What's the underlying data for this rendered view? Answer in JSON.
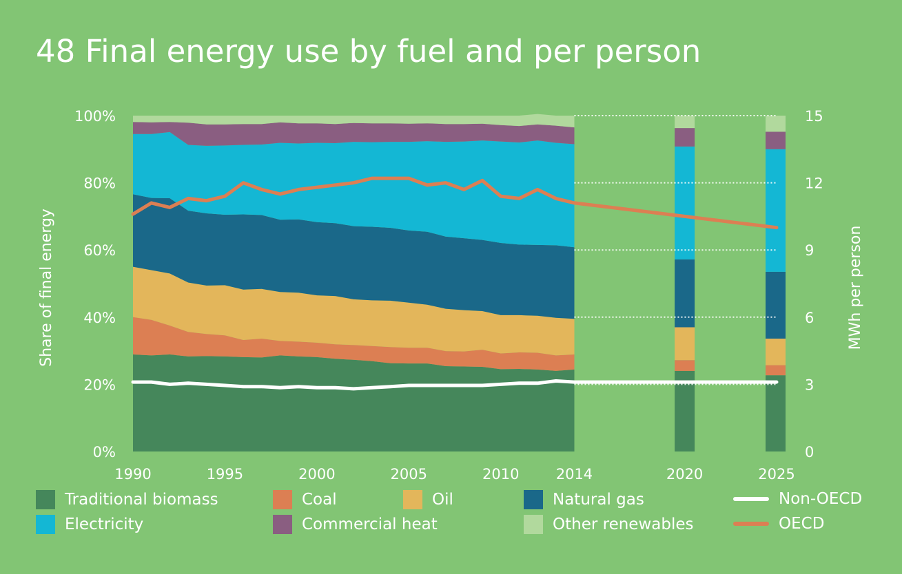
{
  "title": "48 Final energy use by fuel and per person",
  "colors": {
    "background": "#82c574",
    "biomass": "#45875b",
    "coal": "#dc7f53",
    "oil": "#e3b65b",
    "gas": "#1a6889",
    "electricity": "#14b7d4",
    "heat": "#8a5e81",
    "renewables": "#b1d99d",
    "oecd": "#dc7f53",
    "nonoecd": "#ffffff"
  },
  "chart_data": {
    "type": "area",
    "ylabel": "Share of final energy",
    "y2label": "MWh per person",
    "ylim": [
      0,
      100
    ],
    "y2lim": [
      0,
      15
    ],
    "yticks": [
      "0%",
      "20%",
      "40%",
      "60%",
      "80%",
      "100%"
    ],
    "y2ticks": [
      "0",
      "3",
      "6",
      "9",
      "12",
      "15"
    ],
    "xticks": [
      "1990",
      "1995",
      "2000",
      "2005",
      "2010",
      "2014",
      "2020",
      "2025"
    ],
    "x": [
      1990,
      1991,
      1992,
      1993,
      1994,
      1995,
      1996,
      1997,
      1998,
      1999,
      2000,
      2001,
      2002,
      2003,
      2004,
      2005,
      2006,
      2007,
      2008,
      2009,
      2010,
      2011,
      2012,
      2013,
      2014
    ],
    "series": [
      {
        "name": "Traditional biomass",
        "key": "biomass",
        "values": [
          28.9,
          28.6,
          28.9,
          28.3,
          28.4,
          28.3,
          28.1,
          28.0,
          28.6,
          28.3,
          28.1,
          27.6,
          27.3,
          26.9,
          26.3,
          26.2,
          26.2,
          25.4,
          25.3,
          25.2,
          24.5,
          24.6,
          24.4,
          24.0,
          24.4
        ]
      },
      {
        "name": "Coal",
        "key": "coal",
        "values": [
          11.1,
          10.6,
          8.6,
          7.3,
          6.6,
          6.3,
          5.1,
          5.6,
          4.3,
          4.4,
          4.3,
          4.3,
          4.4,
          4.5,
          4.8,
          4.7,
          4.7,
          4.5,
          4.5,
          5.1,
          4.7,
          4.9,
          5.0,
          4.6,
          4.5
        ]
      },
      {
        "name": "Oil",
        "key": "oil",
        "values": [
          15.0,
          14.8,
          15.5,
          14.7,
          14.4,
          14.9,
          15.0,
          14.8,
          14.6,
          14.6,
          14.1,
          14.4,
          13.6,
          13.6,
          13.8,
          13.4,
          12.8,
          12.6,
          12.3,
          11.5,
          11.4,
          11.1,
          11.0,
          11.2,
          10.6
        ]
      },
      {
        "name": "Natural gas",
        "key": "gas",
        "values": [
          21.6,
          21.5,
          22.4,
          21.4,
          21.5,
          21.0,
          22.4,
          22.0,
          21.5,
          21.8,
          21.8,
          21.7,
          21.8,
          21.9,
          21.7,
          21.5,
          21.7,
          21.5,
          21.4,
          21.2,
          21.5,
          21.0,
          21.1,
          21.6,
          21.3
        ]
      },
      {
        "name": "Electricity",
        "key": "electricity",
        "values": [
          17.9,
          19.0,
          19.7,
          19.6,
          20.1,
          20.6,
          20.7,
          21.0,
          22.9,
          22.6,
          23.6,
          23.8,
          25.1,
          25.2,
          25.6,
          26.4,
          27.0,
          28.2,
          28.8,
          29.6,
          30.2,
          30.4,
          31.1,
          30.5,
          30.7
        ]
      },
      {
        "name": "Commercial heat",
        "key": "heat",
        "values": [
          3.6,
          3.5,
          3.0,
          6.6,
          6.4,
          6.3,
          6.2,
          6.1,
          6.1,
          6.0,
          5.8,
          5.7,
          5.6,
          5.6,
          5.5,
          5.4,
          5.3,
          5.3,
          5.2,
          5.0,
          4.9,
          4.9,
          4.8,
          5.1,
          5.0
        ]
      },
      {
        "name": "Other renewables",
        "key": "renewables",
        "values": [
          1.9,
          2.0,
          1.9,
          2.1,
          2.6,
          2.6,
          2.5,
          2.5,
          2.0,
          2.3,
          2.3,
          2.5,
          2.2,
          2.3,
          2.3,
          2.4,
          2.3,
          2.5,
          2.5,
          2.4,
          2.8,
          3.1,
          3.1,
          3.0,
          3.5
        ]
      }
    ],
    "projections": [
      {
        "x": 2020,
        "label": "2020",
        "values": {
          "biomass": 24.0,
          "coal": 3.2,
          "oil": 9.8,
          "gas": 20.2,
          "electricity": 33.6,
          "heat": 5.5,
          "renewables": 3.7
        }
      },
      {
        "x": 2025,
        "label": "2025",
        "values": {
          "biomass": 22.7,
          "coal": 3.0,
          "oil": 7.9,
          "gas": 19.9,
          "electricity": 36.5,
          "heat": 5.2,
          "renewables": 4.8
        }
      }
    ],
    "lines": [
      {
        "name": "OECD",
        "key": "oecd",
        "axis": "right",
        "x": [
          1990,
          1991,
          1992,
          1993,
          1994,
          1995,
          1996,
          1997,
          1998,
          1999,
          2000,
          2001,
          2002,
          2003,
          2004,
          2005,
          2006,
          2007,
          2008,
          2009,
          2010,
          2011,
          2012,
          2013,
          2014,
          2015,
          2016,
          2017,
          2018,
          2019,
          2020,
          2021,
          2022,
          2023,
          2024,
          2025
        ],
        "values": [
          10.6,
          11.1,
          10.9,
          11.3,
          11.2,
          11.4,
          12.0,
          11.7,
          11.5,
          11.7,
          11.8,
          11.9,
          12.0,
          12.2,
          12.2,
          12.2,
          11.9,
          12.0,
          11.7,
          12.1,
          11.4,
          11.3,
          11.7,
          11.3,
          11.1,
          11.0,
          10.9,
          10.8,
          10.7,
          10.6,
          10.5,
          10.4,
          10.3,
          10.2,
          10.1,
          10.0
        ]
      },
      {
        "name": "Non-OECD",
        "key": "nonoecd",
        "axis": "right",
        "x": [
          1990,
          1991,
          1992,
          1993,
          1994,
          1995,
          1996,
          1997,
          1998,
          1999,
          2000,
          2001,
          2002,
          2003,
          2004,
          2005,
          2006,
          2007,
          2008,
          2009,
          2010,
          2011,
          2012,
          2013,
          2014,
          2025
        ],
        "values": [
          3.1,
          3.1,
          3.0,
          3.05,
          3.0,
          2.95,
          2.9,
          2.9,
          2.85,
          2.9,
          2.85,
          2.85,
          2.8,
          2.85,
          2.9,
          2.95,
          2.95,
          2.95,
          2.95,
          2.95,
          3.0,
          3.05,
          3.05,
          3.15,
          3.1,
          3.1
        ]
      }
    ],
    "grid": "dotted white lines beyond 2014",
    "legend_position": "bottom"
  },
  "legend": {
    "biomass": "Traditional biomass",
    "coal": "Coal",
    "oil": "Oil",
    "gas": "Natural gas",
    "nonoecd": "Non-OECD",
    "electricity": "Electricity",
    "heat": "Commercial heat",
    "renewables": "Other renewables",
    "oecd": "OECD"
  }
}
